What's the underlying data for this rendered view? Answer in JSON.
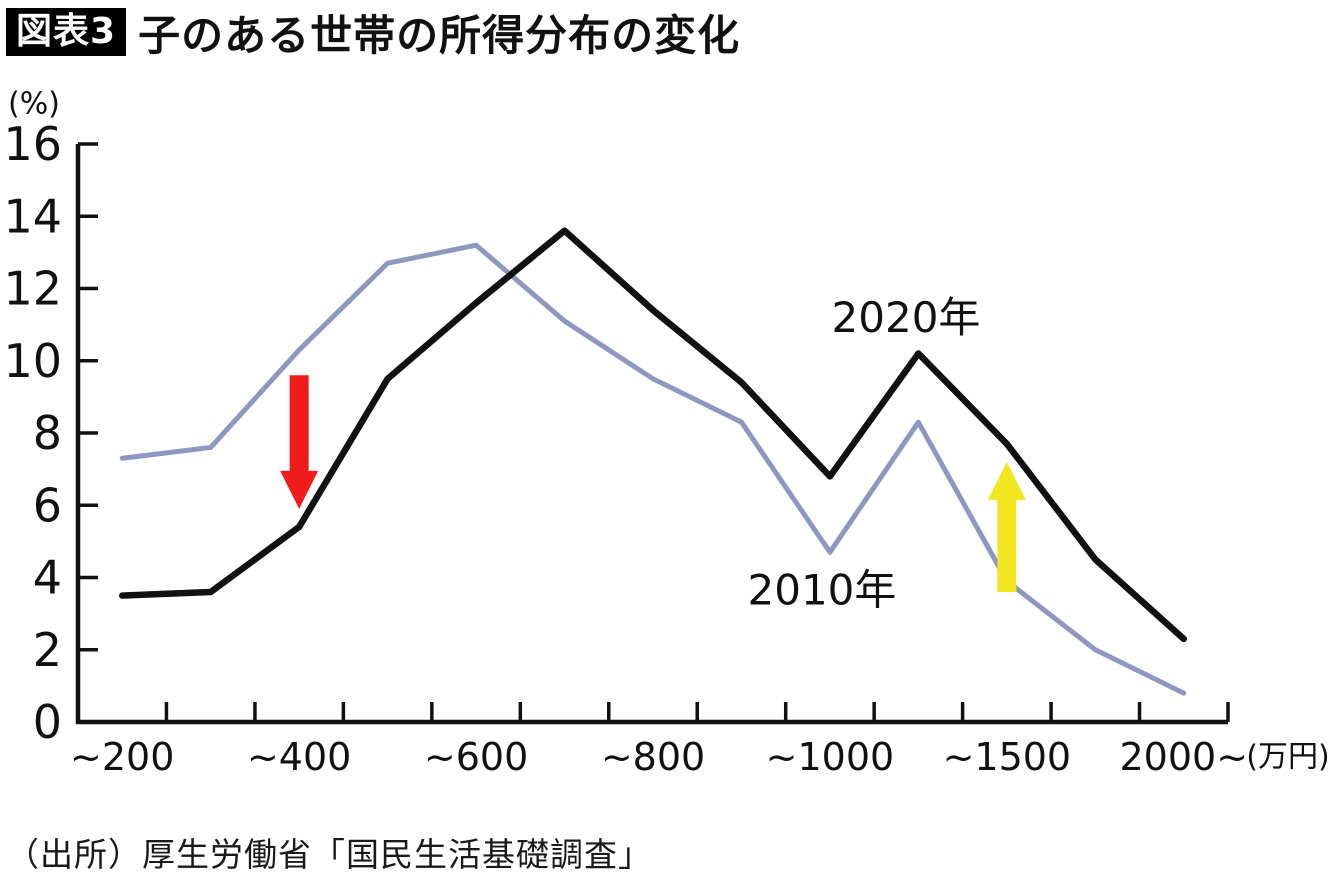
{
  "title": {
    "badge": "図表3",
    "text": "子のある世帯の所得分布の変化"
  },
  "source": "（出所）厚生労働省「国民生活基礎調査」",
  "chart_data": {
    "type": "line",
    "title": "子のある世帯の所得分布の変化",
    "y_unit_label": "(%)",
    "x_unit_label": "(万円)",
    "ylim": [
      0,
      16
    ],
    "y_ticks": [
      0,
      2,
      4,
      6,
      8,
      10,
      12,
      14,
      16
    ],
    "grid": "off",
    "legend_position": "inline-labels",
    "category_labels": [
      "~200",
      "",
      "~400",
      "",
      "~600",
      "",
      "~800",
      "",
      "~1000",
      "",
      "~1500",
      "",
      "2000~"
    ],
    "axis_color": "#111111",
    "series": [
      {
        "name": "2010年",
        "color": "#8C98BF",
        "values": [
          7.3,
          7.6,
          10.3,
          12.7,
          13.2,
          11.1,
          9.5,
          8.3,
          4.7,
          8.3,
          3.9,
          2.0,
          0.8
        ],
        "label_anchor": {
          "x_index": 7.91,
          "value": 3.65
        }
      },
      {
        "name": "2020年",
        "color": "#111111",
        "values": [
          3.5,
          3.6,
          5.4,
          9.5,
          11.6,
          13.6,
          11.4,
          9.4,
          6.8,
          10.2,
          7.7,
          4.5,
          2.3
        ],
        "label_anchor": {
          "x_index": 8.86,
          "value": 11.2
        }
      }
    ],
    "annotations": [
      {
        "type": "arrow",
        "direction": "down",
        "color": "#EE1C1C",
        "category_index": 2,
        "value_from": 9.6,
        "value_to": 5.9
      },
      {
        "type": "arrow",
        "direction": "up",
        "color": "#F2E621",
        "category_index": 10,
        "value_from": 3.6,
        "value_to": 7.2
      }
    ]
  }
}
